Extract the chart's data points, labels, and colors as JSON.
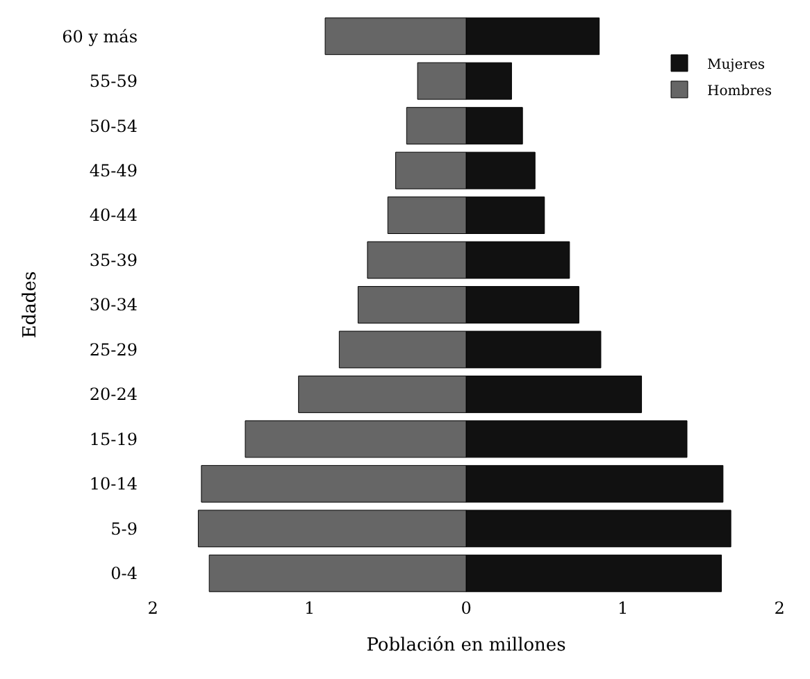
{
  "chart_data": {
    "type": "bar",
    "orientation": "horizontal",
    "xlabel": "Población en millones",
    "ylabel": "Edades",
    "categories": [
      "60 y más",
      "55-59",
      "50-54",
      "45-49",
      "40-44",
      "35-39",
      "30-34",
      "25-29",
      "20-24",
      "15-19",
      "10-14",
      "5-9",
      "0-4"
    ],
    "series": [
      {
        "name": "Mujeres",
        "color": "#111111",
        "values": [
          0.85,
          0.29,
          0.36,
          0.44,
          0.5,
          0.66,
          0.72,
          0.86,
          1.12,
          1.41,
          1.64,
          1.69,
          1.63
        ]
      },
      {
        "name": "Hombres",
        "color": "#666666",
        "values": [
          -0.9,
          -0.31,
          -0.38,
          -0.45,
          -0.5,
          -0.63,
          -0.69,
          -0.81,
          -1.07,
          -1.41,
          -1.69,
          -1.71,
          -1.64
        ]
      }
    ],
    "xlim": [
      -2,
      2
    ],
    "xticks": [
      {
        "value": -2,
        "label": "2"
      },
      {
        "value": -1,
        "label": "1"
      },
      0,
      1,
      2
    ],
    "stacked": true,
    "legend": "top right"
  }
}
